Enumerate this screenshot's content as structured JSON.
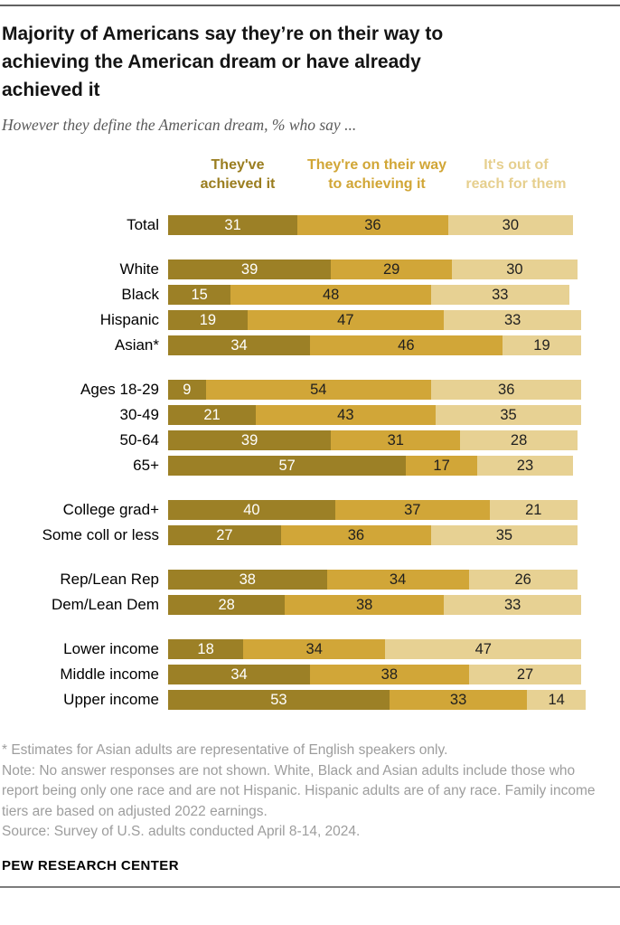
{
  "header": {
    "title": "Majority of Americans say they’re on their way to achieving the American dream or have already achieved it",
    "subtitle": "However they define the American dream, % who say ..."
  },
  "legend": {
    "items": [
      {
        "label": "They've achieved it",
        "line1": "They've",
        "line2": "achieved it",
        "color": "#9a7d1f"
      },
      {
        "label": "They're on their way to achieving it",
        "line1": "They're on their way",
        "line2": "to achieving it",
        "color": "#d1a636"
      },
      {
        "label": "It's out of reach for them",
        "line1": "It's out of",
        "line2": "reach for them",
        "color": "#e6cf8e"
      }
    ]
  },
  "colors": {
    "series1": "#9c8026",
    "series2": "#d1a638",
    "series3": "#e7d193",
    "value_on_dark": "#ffffff",
    "value_on_light": "#1f1f1f",
    "rule": "#616161"
  },
  "chart_data": {
    "type": "bar",
    "stacked": true,
    "orientation": "horizontal",
    "unit": "%",
    "xlim": [
      0,
      100
    ],
    "title": "Majority of Americans say they’re on their way to achieving the American dream or have already achieved it",
    "subtitle": "However they define the American dream, % who say ...",
    "legend_position": "top",
    "series": [
      {
        "name": "They've achieved it",
        "key": "achieved",
        "color": "#9c8026"
      },
      {
        "name": "They're on their way to achieving it",
        "key": "on-their-way",
        "color": "#d1a638"
      },
      {
        "name": "It's out of reach for them",
        "key": "out-of-reach",
        "color": "#e7d193"
      }
    ],
    "groups": [
      {
        "rows": [
          {
            "label": "Total",
            "values": [
              31,
              36,
              30
            ]
          }
        ]
      },
      {
        "rows": [
          {
            "label": "White",
            "values": [
              39,
              29,
              30
            ]
          },
          {
            "label": "Black",
            "values": [
              15,
              48,
              33
            ]
          },
          {
            "label": "Hispanic",
            "values": [
              19,
              47,
              33
            ]
          },
          {
            "label": "Asian*",
            "values": [
              34,
              46,
              19
            ]
          }
        ]
      },
      {
        "rows": [
          {
            "label": "Ages 18-29",
            "values": [
              9,
              54,
              36
            ]
          },
          {
            "label": "30-49",
            "values": [
              21,
              43,
              35
            ]
          },
          {
            "label": "50-64",
            "values": [
              39,
              31,
              28
            ]
          },
          {
            "label": "65+",
            "values": [
              57,
              17,
              23
            ]
          }
        ]
      },
      {
        "rows": [
          {
            "label": "College grad+",
            "values": [
              40,
              37,
              21
            ]
          },
          {
            "label": "Some coll or less",
            "values": [
              27,
              36,
              35
            ]
          }
        ]
      },
      {
        "rows": [
          {
            "label": "Rep/Lean Rep",
            "values": [
              38,
              34,
              26
            ]
          },
          {
            "label": "Dem/Lean Dem",
            "values": [
              28,
              38,
              33
            ]
          }
        ]
      },
      {
        "rows": [
          {
            "label": "Lower income",
            "values": [
              18,
              34,
              47
            ]
          },
          {
            "label": "Middle income",
            "values": [
              34,
              38,
              27
            ]
          },
          {
            "label": "Upper income",
            "values": [
              53,
              33,
              14
            ]
          }
        ]
      }
    ]
  },
  "footer": {
    "footnote": "* Estimates for Asian adults are representative of English speakers only.",
    "note": "Note: No answer responses are not shown. White, Black and Asian adults include those who report being only one race and are not Hispanic. Hispanic adults are of any race. Family income tiers are based on adjusted 2022 earnings.",
    "source": "Source: Survey of U.S. adults conducted April 8-14, 2024.",
    "brand": "PEW RESEARCH CENTER"
  }
}
